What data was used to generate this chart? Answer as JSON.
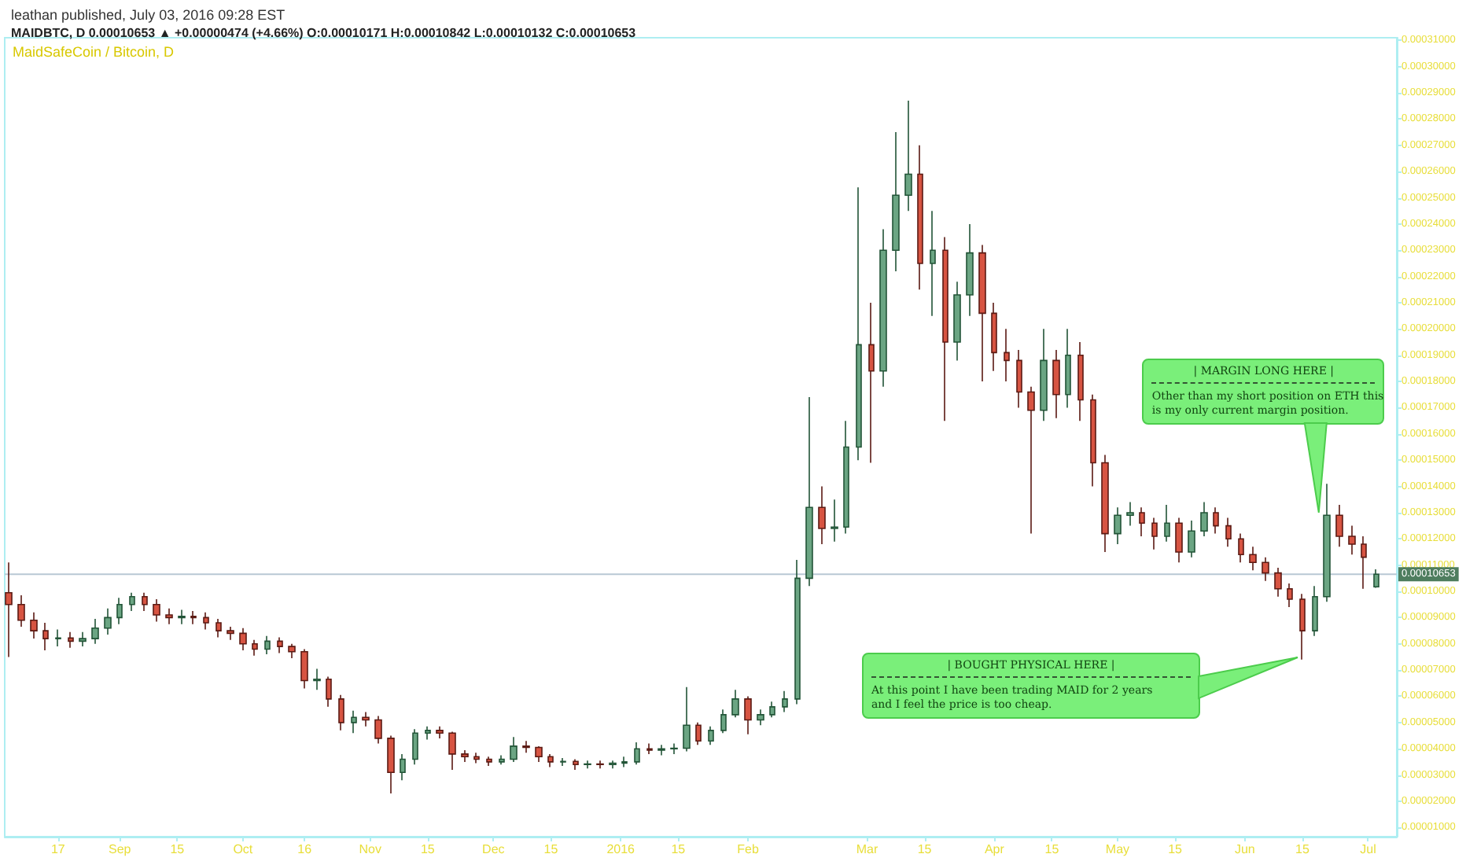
{
  "chart_data": {
    "type": "candlestick",
    "title": "leathan published, July 03, 2016 09:28 EST",
    "subtitle": "MAIDBTC, D 0.00010653 ▲ +0.00000474 (+4.66%) O:0.00010171 H:0.00010842 L:0.00010132 C:0.00010653",
    "annotations": [
      "MaidSafeCoin / Bitcoin, D",
      {
        "text": "| MARGIN LONG HERE |\nOther than my short position on ETH this\nis my only current margin position.",
        "x": "2016-06-19",
        "y": 0.00013
      },
      "| BOUGHT PHYSICAL HERE |\nAt this point I have been trading MAID for 2 years\nand I feel the price is too cheap."
    ],
    "x": [
      "2015-08-05",
      "2015-08-08",
      "2015-08-11",
      "2015-08-14",
      "2015-08-17",
      "2015-08-20",
      "2015-08-23",
      "2015-08-26",
      "2015-08-29",
      "2015-09-01",
      "2015-09-04",
      "2015-09-07",
      "2015-09-10",
      "2015-09-13",
      "2015-09-16",
      "2015-09-19",
      "2015-09-22",
      "2015-09-25",
      "2015-09-28",
      "2015-10-01",
      "2015-10-04",
      "2015-10-07",
      "2015-10-10",
      "2015-10-13",
      "2015-10-16",
      "2015-10-19",
      "2015-10-22",
      "2015-10-25",
      "2015-10-28",
      "2015-10-31",
      "2015-11-03",
      "2015-11-06",
      "2015-11-09",
      "2015-11-12",
      "2015-11-15",
      "2015-11-18",
      "2015-11-21",
      "2015-11-24",
      "2015-11-27",
      "2015-11-30",
      "2015-12-03",
      "2015-12-06",
      "2015-12-09",
      "2015-12-12",
      "2015-12-15",
      "2015-12-18",
      "2015-12-21",
      "2015-12-24",
      "2015-12-27",
      "2015-12-30",
      "2016-01-02",
      "2016-01-05",
      "2016-01-08",
      "2016-01-11",
      "2016-01-14",
      "2016-01-17",
      "2016-01-20",
      "2016-01-23",
      "2016-01-26",
      "2016-01-29",
      "2016-02-01",
      "2016-02-04",
      "2016-02-07",
      "2016-02-10",
      "2016-02-13",
      "2016-02-16",
      "2016-02-19",
      "2016-02-22",
      "2016-02-25",
      "2016-02-28",
      "2016-03-02",
      "2016-03-05",
      "2016-03-08",
      "2016-03-11",
      "2016-03-14",
      "2016-03-17",
      "2016-03-20",
      "2016-03-23",
      "2016-03-26",
      "2016-03-29",
      "2016-04-01",
      "2016-04-04",
      "2016-04-07",
      "2016-04-10",
      "2016-04-13",
      "2016-04-16",
      "2016-04-19",
      "2016-04-22",
      "2016-04-25",
      "2016-04-28",
      "2016-05-01",
      "2016-05-04",
      "2016-05-07",
      "2016-05-10",
      "2016-05-13",
      "2016-05-16",
      "2016-05-19",
      "2016-05-22",
      "2016-05-25",
      "2016-05-28",
      "2016-05-31",
      "2016-06-03",
      "2016-06-06",
      "2016-06-09",
      "2016-06-12",
      "2016-06-15",
      "2016-06-18",
      "2016-06-21",
      "2016-06-24",
      "2016-06-27",
      "2016-06-30",
      "2016-07-03"
    ],
    "ohlc": [
      [
        9.95e-05,
        0.000111,
        7.5e-05,
        9.5e-05
      ],
      [
        9.5e-05,
        9.85e-05,
        8.65e-05,
        8.9e-05
      ],
      [
        8.9e-05,
        9.2e-05,
        8.2e-05,
        8.5e-05
      ],
      [
        8.5e-05,
        8.8e-05,
        7.75e-05,
        8.2e-05
      ],
      [
        8.2e-05,
        8.55e-05,
        7.9e-05,
        8.22e-05
      ],
      [
        8.22e-05,
        8.45e-05,
        7.85e-05,
        8.1e-05
      ],
      [
        8.1e-05,
        8.45e-05,
        7.9e-05,
        8.2e-05
      ],
      [
        8.2e-05,
        8.95e-05,
        8e-05,
        8.6e-05
      ],
      [
        8.6e-05,
        9.35e-05,
        8.35e-05,
        9e-05
      ],
      [
        9e-05,
        9.75e-05,
        8.75e-05,
        9.5e-05
      ],
      [
        9.5e-05,
        9.95e-05,
        9.25e-05,
        9.8e-05
      ],
      [
        9.8e-05,
        9.95e-05,
        9.25e-05,
        9.5e-05
      ],
      [
        9.5e-05,
        9.7e-05,
        8.85e-05,
        9.1e-05
      ],
      [
        9.1e-05,
        9.35e-05,
        8.75e-05,
        9e-05
      ],
      [
        9e-05,
        9.3e-05,
        8.75e-05,
        9.05e-05
      ],
      [
        9.05e-05,
        9.25e-05,
        8.75e-05,
        9e-05
      ],
      [
        9e-05,
        9.2e-05,
        8.55e-05,
        8.8e-05
      ],
      [
        8.8e-05,
        8.95e-05,
        8.25e-05,
        8.5e-05
      ],
      [
        8.5e-05,
        8.65e-05,
        8.15e-05,
        8.4e-05
      ],
      [
        8.4e-05,
        8.6e-05,
        7.75e-05,
        8e-05
      ],
      [
        8e-05,
        8.15e-05,
        7.55e-05,
        7.8e-05
      ],
      [
        7.8e-05,
        8.3e-05,
        7.6e-05,
        8.1e-05
      ],
      [
        8.1e-05,
        8.25e-05,
        7.65e-05,
        7.9e-05
      ],
      [
        7.9e-05,
        8e-05,
        7.45e-05,
        7.7e-05
      ],
      [
        7.7e-05,
        7.8e-05,
        6.3e-05,
        6.6e-05
      ],
      [
        6.6e-05,
        7.05e-05,
        6.25e-05,
        6.65e-05
      ],
      [
        6.65e-05,
        6.75e-05,
        5.6e-05,
        5.9e-05
      ],
      [
        5.9e-05,
        6.05e-05,
        4.7e-05,
        5e-05
      ],
      [
        5e-05,
        5.45e-05,
        4.6e-05,
        5.2e-05
      ],
      [
        5.2e-05,
        5.4e-05,
        4.85e-05,
        5.1e-05
      ],
      [
        5.1e-05,
        5.25e-05,
        4.2e-05,
        4.4e-05
      ],
      [
        4.4e-05,
        4.5e-05,
        2.3e-05,
        3.1e-05
      ],
      [
        3.1e-05,
        3.8e-05,
        2.8e-05,
        3.6e-05
      ],
      [
        3.6e-05,
        4.75e-05,
        3.4e-05,
        4.6e-05
      ],
      [
        4.6e-05,
        4.85e-05,
        4.35e-05,
        4.7e-05
      ],
      [
        4.7e-05,
        4.85e-05,
        4.4e-05,
        4.6e-05
      ],
      [
        4.6e-05,
        4.65e-05,
        3.2e-05,
        3.8e-05
      ],
      [
        3.8e-05,
        3.95e-05,
        3.5e-05,
        3.7e-05
      ],
      [
        3.7e-05,
        3.85e-05,
        3.45e-05,
        3.6e-05
      ],
      [
        3.6e-05,
        3.7e-05,
        3.35e-05,
        3.5e-05
      ],
      [
        3.5e-05,
        3.75e-05,
        3.4e-05,
        3.6e-05
      ],
      [
        3.6e-05,
        4.45e-05,
        3.5e-05,
        4.1e-05
      ],
      [
        4.1e-05,
        4.3e-05,
        3.85e-05,
        4.05e-05
      ],
      [
        4.05e-05,
        4.1e-05,
        3.5e-05,
        3.7e-05
      ],
      [
        3.7e-05,
        3.8e-05,
        3.3e-05,
        3.5e-05
      ],
      [
        3.5e-05,
        3.65e-05,
        3.35e-05,
        3.52e-05
      ],
      [
        3.52e-05,
        3.6e-05,
        3.2e-05,
        3.4e-05
      ],
      [
        3.4e-05,
        3.55e-05,
        3.25e-05,
        3.42e-05
      ],
      [
        3.42e-05,
        3.55e-05,
        3.25e-05,
        3.4e-05
      ],
      [
        3.4e-05,
        3.55e-05,
        3.25e-05,
        3.45e-05
      ],
      [
        3.45e-05,
        3.7e-05,
        3.3e-05,
        3.5e-05
      ],
      [
        3.5e-05,
        4.25e-05,
        3.4e-05,
        4e-05
      ],
      [
        4e-05,
        4.2e-05,
        3.8e-05,
        3.95e-05
      ],
      [
        3.95e-05,
        4.15e-05,
        3.75e-05,
        4e-05
      ],
      [
        4e-05,
        4.2e-05,
        3.8e-05,
        4.02e-05
      ],
      [
        4.02e-05,
        6.35e-05,
        3.9e-05,
        4.9e-05
      ],
      [
        4.9e-05,
        5e-05,
        4.15e-05,
        4.3e-05
      ],
      [
        4.3e-05,
        4.85e-05,
        4.15e-05,
        4.7e-05
      ],
      [
        4.7e-05,
        5.5e-05,
        4.6e-05,
        5.3e-05
      ],
      [
        5.3e-05,
        6.25e-05,
        5.2e-05,
        5.9e-05
      ],
      [
        5.9e-05,
        6e-05,
        4.55e-05,
        5.1e-05
      ],
      [
        5.1e-05,
        5.5e-05,
        4.9e-05,
        5.3e-05
      ],
      [
        5.3e-05,
        5.8e-05,
        5.2e-05,
        5.6e-05
      ],
      [
        5.6e-05,
        6.2e-05,
        5.4e-05,
        5.9e-05
      ],
      [
        5.9e-05,
        0.000112,
        5.7e-05,
        0.000105
      ],
      [
        0.000105,
        0.000174,
        0.000102,
        0.000132
      ],
      [
        0.000132,
        0.00014,
        0.000118,
        0.000124
      ],
      [
        0.000124,
        0.000135,
        0.000119,
        0.0001245
      ],
      [
        0.0001245,
        0.000165,
        0.000122,
        0.000155
      ],
      [
        0.000155,
        0.000254,
        0.00015,
        0.000194
      ],
      [
        0.000194,
        0.00021,
        0.000149,
        0.000184
      ],
      [
        0.000184,
        0.000238,
        0.000178,
        0.00023
      ],
      [
        0.00023,
        0.000275,
        0.000222,
        0.000251
      ],
      [
        0.000251,
        0.000287,
        0.000245,
        0.000259
      ],
      [
        0.000259,
        0.00027,
        0.000215,
        0.000225
      ],
      [
        0.000225,
        0.000245,
        0.000205,
        0.00023
      ],
      [
        0.00023,
        0.000235,
        0.000165,
        0.000195
      ],
      [
        0.000195,
        0.000218,
        0.000188,
        0.000213
      ],
      [
        0.000213,
        0.00024,
        0.000205,
        0.000229
      ],
      [
        0.000229,
        0.000232,
        0.00018,
        0.000206
      ],
      [
        0.000206,
        0.00021,
        0.000184,
        0.000191
      ],
      [
        0.000191,
        0.0002,
        0.00018,
        0.000188
      ],
      [
        0.000188,
        0.000192,
        0.00017,
        0.000176
      ],
      [
        0.000176,
        0.000178,
        0.000122,
        0.000169
      ],
      [
        0.000169,
        0.0002,
        0.000165,
        0.000188
      ],
      [
        0.000188,
        0.000192,
        0.000166,
        0.000175
      ],
      [
        0.000175,
        0.0002,
        0.00017,
        0.00019
      ],
      [
        0.00019,
        0.000195,
        0.000165,
        0.000173
      ],
      [
        0.000173,
        0.000175,
        0.00014,
        0.000149
      ],
      [
        0.000149,
        0.000152,
        0.000115,
        0.000122
      ],
      [
        0.000122,
        0.000132,
        0.000118,
        0.000129
      ],
      [
        0.000129,
        0.000134,
        0.000125,
        0.00013
      ],
      [
        0.00013,
        0.000132,
        0.000121,
        0.000126
      ],
      [
        0.000126,
        0.000128,
        0.000116,
        0.000121
      ],
      [
        0.000121,
        0.000133,
        0.000119,
        0.000126
      ],
      [
        0.000126,
        0.000128,
        0.000111,
        0.000115
      ],
      [
        0.000115,
        0.000127,
        0.000113,
        0.000123
      ],
      [
        0.000123,
        0.000134,
        0.000121,
        0.00013
      ],
      [
        0.00013,
        0.000132,
        0.000122,
        0.000125
      ],
      [
        0.000125,
        0.000128,
        0.000117,
        0.00012
      ],
      [
        0.00012,
        0.000122,
        0.000111,
        0.000114
      ],
      [
        0.000114,
        0.000117,
        0.000108,
        0.000111
      ],
      [
        0.000111,
        0.000113,
        0.000104,
        0.000107
      ],
      [
        0.000107,
        0.000109,
        9.8e-05,
        0.000101
      ],
      [
        0.000101,
        0.000103,
        9.4e-05,
        9.7e-05
      ],
      [
        9.7e-05,
        9.9e-05,
        7.4e-05,
        8.5e-05
      ],
      [
        8.5e-05,
        0.000102,
        8.3e-05,
        9.8e-05
      ],
      [
        9.8e-05,
        0.000141,
        9.6e-05,
        0.000129
      ],
      [
        0.000129,
        0.000133,
        0.000117,
        0.000121
      ],
      [
        0.000121,
        0.000125,
        0.000114,
        0.000118
      ],
      [
        0.000118,
        0.000121,
        0.000101,
        0.000113
      ],
      [
        0.00010171,
        0.00010842,
        0.00010132,
        0.00010653
      ]
    ],
    "xlim": [
      "2015-08-04",
      "2016-07-08"
    ],
    "xticks": [
      {
        "value": "2015-08-17",
        "label": "17"
      },
      {
        "value": "2015-09-01",
        "label": "Sep"
      },
      {
        "value": "2015-09-15",
        "label": "15"
      },
      {
        "value": "2015-10-01",
        "label": "Oct"
      },
      {
        "value": "2015-10-16",
        "label": "16"
      },
      {
        "value": "2015-11-01",
        "label": "Nov"
      },
      {
        "value": "2015-11-15",
        "label": "15"
      },
      {
        "value": "2015-12-01",
        "label": "Dec"
      },
      {
        "value": "2015-12-15",
        "label": "15"
      },
      {
        "value": "2016-01-01",
        "label": "2016"
      },
      {
        "value": "2016-01-15",
        "label": "15"
      },
      {
        "value": "2016-02-01",
        "label": "Feb"
      },
      {
        "value": "2016-03-01",
        "label": "Mar"
      },
      {
        "value": "2016-03-15",
        "label": "15"
      },
      {
        "value": "2016-04-01",
        "label": "Apr"
      },
      {
        "value": "2016-04-15",
        "label": "15"
      },
      {
        "value": "2016-05-01",
        "label": "May"
      },
      {
        "value": "2016-05-15",
        "label": "15"
      },
      {
        "value": "2016-06-01",
        "label": "Jun"
      },
      {
        "value": "2016-06-15",
        "label": "15"
      },
      {
        "value": "2016-07-01",
        "label": "Jul"
      }
    ],
    "ylim": [
      6.5e-06,
      0.000311
    ],
    "yticks": [
      {
        "value": 1e-05,
        "label": "0.00001000"
      },
      {
        "value": 2e-05,
        "label": "0.00002000"
      },
      {
        "value": 3e-05,
        "label": "0.00003000"
      },
      {
        "value": 4e-05,
        "label": "0.00004000"
      },
      {
        "value": 5e-05,
        "label": "0.00005000"
      },
      {
        "value": 6e-05,
        "label": "0.00006000"
      },
      {
        "value": 7e-05,
        "label": "0.00007000"
      },
      {
        "value": 8e-05,
        "label": "0.00008000"
      },
      {
        "value": 9e-05,
        "label": "0.00009000"
      },
      {
        "value": 0.0001,
        "label": "0.00010000"
      },
      {
        "value": 0.00011,
        "label": "0.00011000"
      },
      {
        "value": 0.00012,
        "label": "0.00012000"
      },
      {
        "value": 0.00013,
        "label": "0.00013000"
      },
      {
        "value": 0.00014,
        "label": "0.00014000"
      },
      {
        "value": 0.00015,
        "label": "0.00015000"
      },
      {
        "value": 0.00016,
        "label": "0.00016000"
      },
      {
        "value": 0.00017,
        "label": "0.00017000"
      },
      {
        "value": 0.00018,
        "label": "0.00018000"
      },
      {
        "value": 0.00019,
        "label": "0.00019000"
      },
      {
        "value": 0.0002,
        "label": "0.00020000"
      },
      {
        "value": 0.00021,
        "label": "0.00021000"
      },
      {
        "value": 0.00022,
        "label": "0.00022000"
      },
      {
        "value": 0.00023,
        "label": "0.00023000"
      },
      {
        "value": 0.00024,
        "label": "0.00024000"
      },
      {
        "value": 0.00025,
        "label": "0.00025000"
      },
      {
        "value": 0.00026,
        "label": "0.00026000"
      },
      {
        "value": 0.00027,
        "label": "0.00027000"
      },
      {
        "value": 0.00028,
        "label": "0.00028000"
      },
      {
        "value": 0.00029,
        "label": "0.00029000"
      },
      {
        "value": 0.0003,
        "label": "0.00030000"
      },
      {
        "value": 0.00031,
        "label": "0.00031000"
      }
    ],
    "ref_lines": [
      {
        "axis": "y",
        "value": 0.00010653,
        "label": "0.00010653",
        "color": "#b8c8d4"
      }
    ]
  }
}
